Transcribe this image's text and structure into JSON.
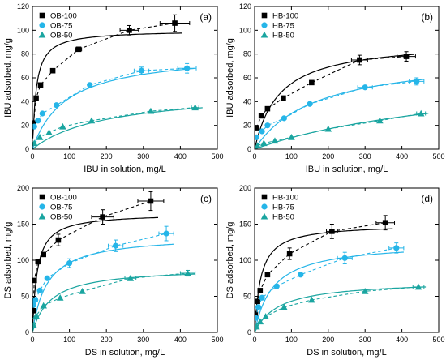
{
  "chart_data": [
    {
      "type": "scatter",
      "panel_label": "(a)",
      "xlabel": "IBU in solution, mg/L",
      "ylabel": "IBU adsorbed, mg/g",
      "xlim": [
        0,
        500
      ],
      "ylim": [
        0,
        120
      ],
      "xticks": [
        0,
        100,
        200,
        300,
        400,
        500
      ],
      "yticks": [
        0,
        20,
        40,
        60,
        80,
        100,
        120
      ],
      "legend_position": "top-left",
      "series": [
        {
          "name": "OB-100",
          "color": "#000000",
          "marker": "square",
          "points": [
            [
              3,
              22
            ],
            [
              10,
              43
            ],
            [
              22,
              54
            ],
            [
              55,
              66
            ],
            [
              125,
              84
            ],
            [
              262,
              100
            ],
            [
              385,
              106
            ]
          ],
          "xerr": [
            [
              125,
              8
            ],
            [
              262,
              25
            ],
            [
              385,
              40
            ]
          ],
          "yerr": [
            [
              262,
              4
            ],
            [
              385,
              7
            ]
          ],
          "fit": {
            "model": "langmuir",
            "qmax": 100,
            "K": 0.1
          }
        },
        {
          "name": "OB-75",
          "color": "#25b5e8",
          "marker": "circle",
          "points": [
            [
              5,
              19
            ],
            [
              15,
              24
            ],
            [
              27,
              30
            ],
            [
              65,
              37
            ],
            [
              155,
              54
            ],
            [
              295,
              66
            ],
            [
              418,
              68
            ]
          ],
          "xerr": [
            [
              295,
              20
            ],
            [
              418,
              25
            ]
          ],
          "yerr": [
            [
              295,
              3
            ],
            [
              418,
              4
            ]
          ],
          "fit": {
            "model": "langmuir",
            "qmax": 82,
            "K": 0.011
          }
        },
        {
          "name": "OB-50",
          "color": "#1aa5a0",
          "marker": "triangle",
          "points": [
            [
              5,
              5
            ],
            [
              20,
              10
            ],
            [
              45,
              14
            ],
            [
              82,
              19
            ],
            [
              160,
              24
            ],
            [
              320,
              32
            ],
            [
              440,
              35
            ]
          ],
          "xerr": [
            [
              440,
              10
            ]
          ],
          "yerr": [],
          "fit": {
            "model": "langmuir",
            "qmax": 50,
            "K": 0.005
          }
        }
      ]
    },
    {
      "type": "scatter",
      "panel_label": "(b)",
      "xlabel": "IBU in solution, mg/L",
      "ylabel": "IBU adsorbed, mg/g",
      "xlim": [
        0,
        500
      ],
      "ylim": [
        0,
        120
      ],
      "xticks": [
        0,
        100,
        200,
        300,
        400,
        500
      ],
      "yticks": [
        0,
        20,
        40,
        60,
        80,
        100,
        120
      ],
      "legend_position": "top-left",
      "series": [
        {
          "name": "HB-100",
          "color": "#000000",
          "marker": "square",
          "points": [
            [
              5,
              18
            ],
            [
              18,
              28
            ],
            [
              35,
              34
            ],
            [
              78,
              43
            ],
            [
              155,
              56
            ],
            [
              285,
              75
            ],
            [
              412,
              78
            ]
          ],
          "xerr": [
            [
              285,
              22
            ],
            [
              412,
              25
            ]
          ],
          "yerr": [
            [
              285,
              4
            ],
            [
              412,
              4
            ]
          ],
          "fit": {
            "model": "langmuir",
            "qmax": 92,
            "K": 0.015
          }
        },
        {
          "name": "HB-75",
          "color": "#25b5e8",
          "marker": "circle",
          "points": [
            [
              5,
              10
            ],
            [
              20,
              15
            ],
            [
              35,
              20
            ],
            [
              80,
              26
            ],
            [
              150,
              38
            ],
            [
              300,
              52
            ],
            [
              440,
              57
            ]
          ],
          "xerr": [
            [
              300,
              20
            ],
            [
              440,
              20
            ]
          ],
          "yerr": [
            [
              440,
              3
            ]
          ],
          "fit": {
            "model": "langmuir",
            "qmax": 80,
            "K": 0.006
          }
        },
        {
          "name": "HB-50",
          "color": "#1aa5a0",
          "marker": "triangle",
          "points": [
            [
              8,
              3
            ],
            [
              25,
              5
            ],
            [
              55,
              7
            ],
            [
              100,
              10
            ],
            [
              200,
              17
            ],
            [
              340,
              24
            ],
            [
              452,
              30
            ]
          ],
          "xerr": [
            [
              452,
              12
            ]
          ],
          "yerr": [],
          "fit": {
            "model": "langmuir",
            "qmax": 70,
            "K": 0.0016
          }
        }
      ]
    },
    {
      "type": "scatter",
      "panel_label": "(c)",
      "xlabel": "DS in solution, mg/L",
      "ylabel": "DS adsorbed, mg/g",
      "xlim": [
        0,
        500
      ],
      "ylim": [
        0,
        200
      ],
      "xticks": [
        0,
        100,
        200,
        300,
        400,
        500
      ],
      "yticks": [
        0,
        50,
        100,
        150,
        200
      ],
      "legend_position": "top-left",
      "series": [
        {
          "name": "OB-100",
          "color": "#000000",
          "marker": "square",
          "points": [
            [
              2,
              30
            ],
            [
              5,
              72
            ],
            [
              15,
              98
            ],
            [
              30,
              108
            ],
            [
              70,
              128
            ],
            [
              190,
              160
            ],
            [
              320,
              182
            ]
          ],
          "xerr": [
            [
              190,
              30
            ],
            [
              320,
              35
            ]
          ],
          "yerr": [
            [
              70,
              8
            ],
            [
              190,
              10
            ],
            [
              320,
              13
            ]
          ],
          "fit": {
            "model": "langmuir",
            "qmax": 165,
            "K": 0.08
          }
        },
        {
          "name": "OB-75",
          "color": "#25b5e8",
          "marker": "circle",
          "points": [
            [
              3,
              38
            ],
            [
              8,
              45
            ],
            [
              20,
              58
            ],
            [
              40,
              75
            ],
            [
              100,
              96
            ],
            [
              225,
              120
            ],
            [
              362,
              137
            ]
          ],
          "xerr": [
            [
              225,
              20
            ],
            [
              362,
              20
            ]
          ],
          "yerr": [
            [
              100,
              6
            ],
            [
              225,
              8
            ],
            [
              362,
              10
            ]
          ],
          "fit": {
            "model": "langmuir",
            "qmax": 135,
            "K": 0.025
          }
        },
        {
          "name": "OB-50",
          "color": "#1aa5a0",
          "marker": "triangle",
          "points": [
            [
              3,
              10
            ],
            [
              10,
              23
            ],
            [
              30,
              37
            ],
            [
              75,
              48
            ],
            [
              135,
              57
            ],
            [
              265,
              75
            ],
            [
              420,
              82
            ]
          ],
          "xerr": [
            [
              265,
              15
            ],
            [
              420,
              20
            ]
          ],
          "yerr": [
            [
              420,
              4
            ]
          ],
          "fit": {
            "model": "langmuir",
            "qmax": 90,
            "K": 0.02
          }
        }
      ]
    },
    {
      "type": "scatter",
      "panel_label": "(d)",
      "xlabel": "DS in solution, mg/L",
      "ylabel": "DS adsorbed, mg/g",
      "xlim": [
        0,
        500
      ],
      "ylim": [
        0,
        200
      ],
      "xticks": [
        0,
        100,
        200,
        300,
        400,
        500
      ],
      "yticks": [
        0,
        50,
        100,
        150,
        200
      ],
      "legend_position": "top-left",
      "series": [
        {
          "name": "HB-100",
          "color": "#000000",
          "marker": "square",
          "points": [
            [
              2,
              25
            ],
            [
              8,
              43
            ],
            [
              15,
              58
            ],
            [
              35,
              80
            ],
            [
              95,
              109
            ],
            [
              210,
              140
            ],
            [
              355,
              152
            ]
          ],
          "xerr": [
            [
              210,
              15
            ],
            [
              355,
              25
            ]
          ],
          "yerr": [
            [
              95,
              8
            ],
            [
              210,
              10
            ],
            [
              355,
              10
            ]
          ],
          "fit": {
            "model": "langmuir",
            "qmax": 150,
            "K": 0.06
          }
        },
        {
          "name": "HB-75",
          "color": "#25b5e8",
          "marker": "circle",
          "points": [
            [
              3,
              20
            ],
            [
              10,
              35
            ],
            [
              20,
              48
            ],
            [
              60,
              64
            ],
            [
              125,
              80
            ],
            [
              245,
              103
            ],
            [
              385,
              117
            ]
          ],
          "xerr": [
            [
              245,
              20
            ],
            [
              385,
              20
            ]
          ],
          "yerr": [
            [
              245,
              8
            ],
            [
              385,
              7
            ]
          ],
          "fit": {
            "model": "langmuir",
            "qmax": 125,
            "K": 0.02
          }
        },
        {
          "name": "HB-50",
          "color": "#1aa5a0",
          "marker": "triangle",
          "points": [
            [
              5,
              8
            ],
            [
              15,
              15
            ],
            [
              30,
              22
            ],
            [
              80,
              35
            ],
            [
              155,
              45
            ],
            [
              300,
              57
            ],
            [
              445,
              63
            ]
          ],
          "xerr": [
            [
              445,
              15
            ]
          ],
          "yerr": [],
          "fit": {
            "model": "langmuir",
            "qmax": 72,
            "K": 0.015
          }
        }
      ]
    }
  ]
}
